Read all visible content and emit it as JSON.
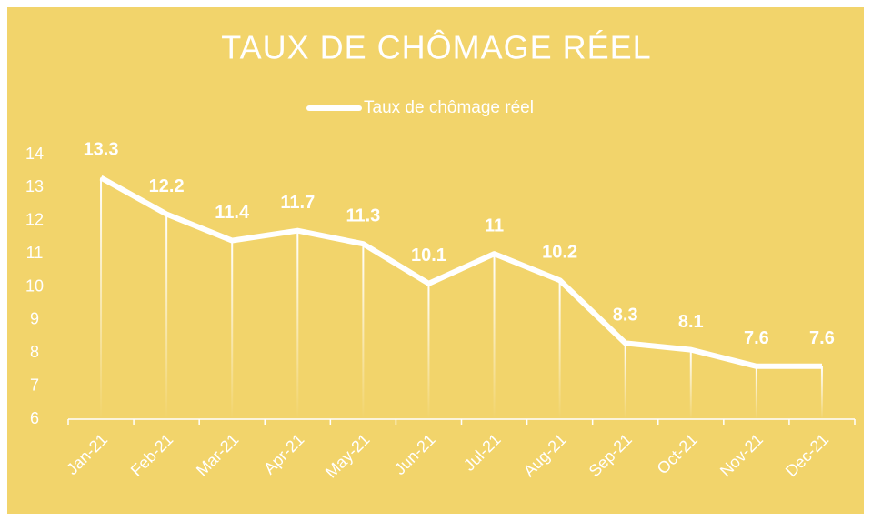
{
  "chart_data": {
    "type": "line",
    "title": "TAUX DE CHÔMAGE RÉEL",
    "categories": [
      "Jan-21",
      "Feb-21",
      "Mar-21",
      "Apr-21",
      "May-21",
      "Jun-21",
      "Jul-21",
      "Aug-21",
      "Sep-21",
      "Oct-21",
      "Nov-21",
      "Dec-21"
    ],
    "series": [
      {
        "name": "Taux de chômage réel",
        "color": "#ffffff",
        "values": [
          13.3,
          12.2,
          11.4,
          11.7,
          11.3,
          10.1,
          11,
          10.2,
          8.3,
          8.1,
          7.6,
          7.6
        ]
      }
    ],
    "ylim": [
      6,
      14
    ],
    "yticks": [
      6,
      7,
      8,
      9,
      10,
      11,
      12,
      13,
      14
    ],
    "legend": "top",
    "background": "#f2d46b"
  }
}
